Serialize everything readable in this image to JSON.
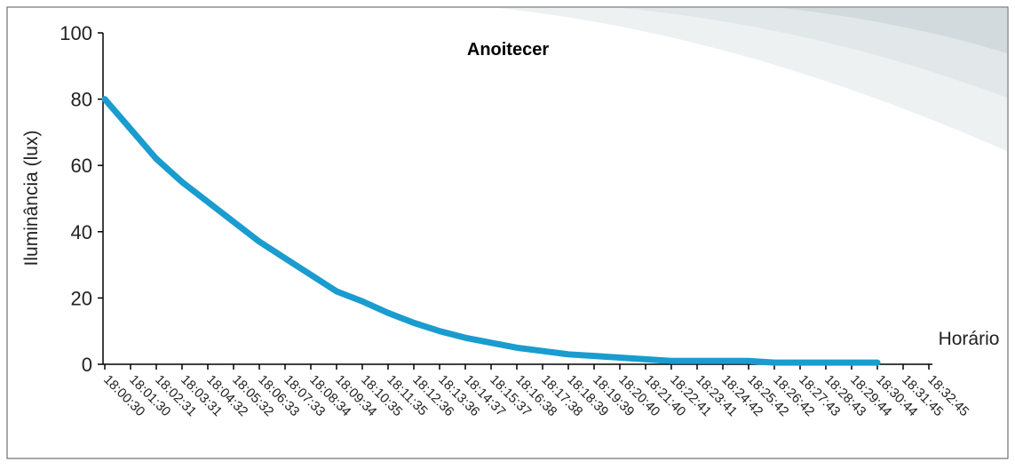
{
  "chart_data": {
    "type": "line",
    "title": "Anoitecer",
    "y_label": "Iluminância (lux)",
    "x_label": "Horário",
    "categories": [
      "18:00:30",
      "18:01:30",
      "18:02:31",
      "18:03:31",
      "18:04:32",
      "18:05:32",
      "18:06:33",
      "18:07:33",
      "18:08:34",
      "18:09:34",
      "18:10:35",
      "18:11:35",
      "18:12:36",
      "18:13:36",
      "18:14:37",
      "18:15:37",
      "18:16:38",
      "18:17:38",
      "18:18:39",
      "18:19:39",
      "18:20:40",
      "18:21:40",
      "18:22:41",
      "18:23:41",
      "18:24:42",
      "18:25:42",
      "18:26:42",
      "18:27:43",
      "18:28:43",
      "18:29:44",
      "18:30:44",
      "18:31:45",
      "18:32:45"
    ],
    "series": [
      {
        "name": "Iluminância",
        "color": "#1a9ccf",
        "values": [
          80,
          71,
          62,
          55,
          49,
          43,
          37,
          32,
          27,
          22,
          19,
          15.5,
          12.5,
          10,
          8,
          6.5,
          5,
          4,
          3,
          2.5,
          2,
          1.5,
          1,
          1,
          1,
          1,
          0.5,
          0.5,
          0.5,
          0.5,
          0.5,
          null,
          null
        ]
      }
    ],
    "ylim": [
      0,
      100
    ],
    "yticks": [
      0,
      20,
      40,
      60,
      80,
      100
    ]
  }
}
